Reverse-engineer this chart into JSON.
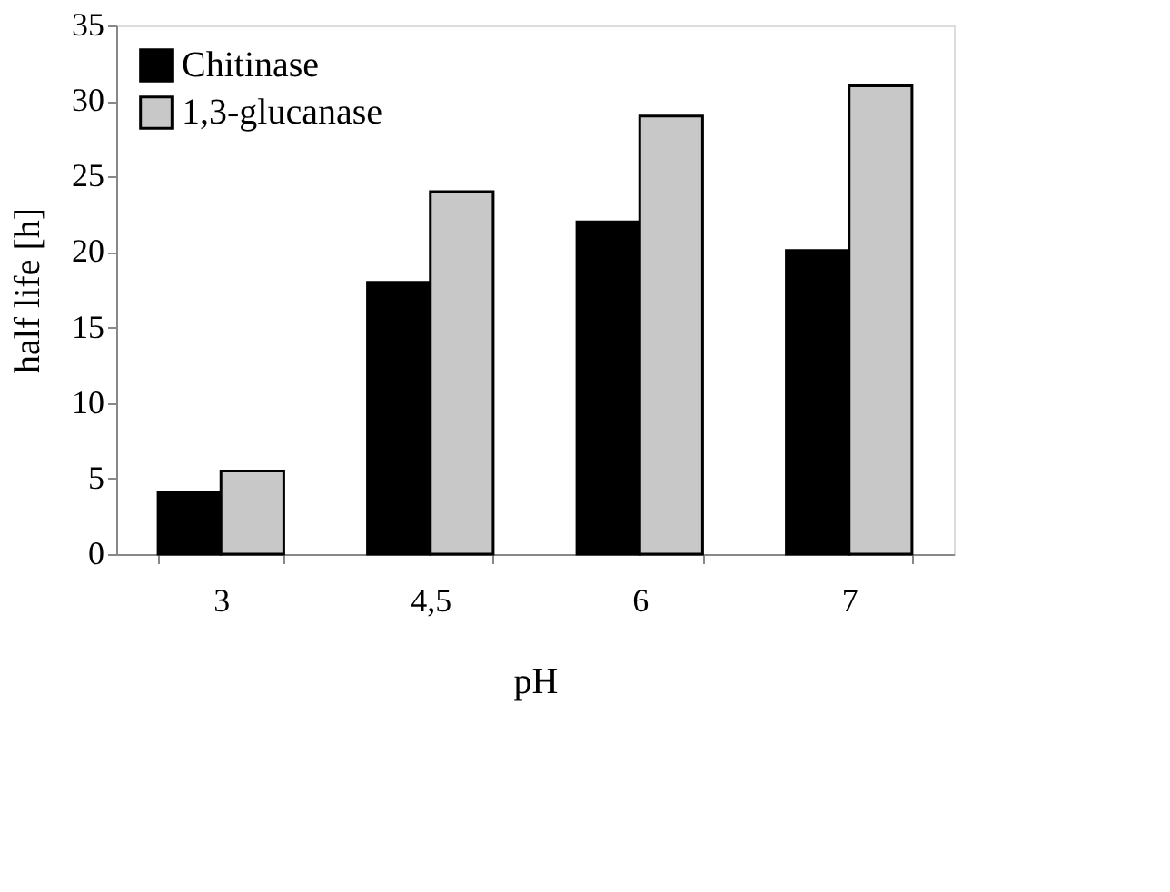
{
  "chart_data": {
    "type": "bar",
    "xlabel": "pH",
    "ylabel": "half life [h]",
    "categories": [
      "3",
      "4,5",
      "6",
      "7"
    ],
    "series": [
      {
        "name": "Chitinase",
        "color": "#000000",
        "values": [
          4.1,
          18,
          22,
          20.1
        ]
      },
      {
        "name": "1,3-glucanase",
        "color": "#c8c8c8",
        "values": [
          5.5,
          24,
          29,
          31
        ]
      }
    ],
    "ylim": [
      0,
      35
    ],
    "yticks": [
      0,
      5,
      10,
      15,
      20,
      25,
      30,
      35
    ],
    "grid": false,
    "legend": "top left"
  }
}
